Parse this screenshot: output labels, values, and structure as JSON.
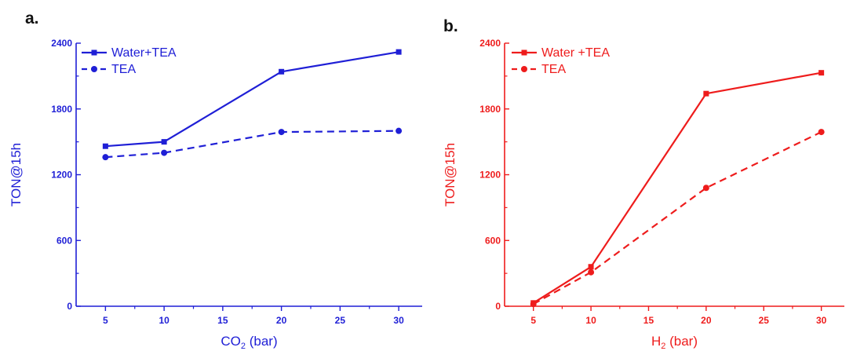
{
  "chart_data": [
    {
      "type": "line",
      "panel_label": "a.",
      "color": "#1f1fd6",
      "xlabel": "CO",
      "xlabel_sub": "2",
      "xlabel_unit": " (bar)",
      "ylabel": "TON@15h",
      "xlim": [
        2.5,
        32
      ],
      "ylim": [
        0,
        2400
      ],
      "xticks": [
        5,
        10,
        15,
        20,
        25,
        30
      ],
      "yticks": [
        0,
        600,
        1200,
        1800,
        2400
      ],
      "grid": false,
      "legend_position": "top-left",
      "series": [
        {
          "name": "Water+TEA",
          "marker": "square",
          "dash": "solid",
          "x": [
            5,
            10,
            20,
            30
          ],
          "y": [
            1460,
            1500,
            2140,
            2320
          ]
        },
        {
          "name": "TEA",
          "marker": "circle",
          "dash": "dashed",
          "x": [
            5,
            10,
            20,
            30
          ],
          "y": [
            1360,
            1400,
            1590,
            1600
          ]
        }
      ]
    },
    {
      "type": "line",
      "panel_label": "b.",
      "color": "#ee1c1c",
      "xlabel": "H",
      "xlabel_sub": "2",
      "xlabel_unit": " (bar)",
      "ylabel": "TON@15h",
      "xlim": [
        2.5,
        32
      ],
      "ylim": [
        0,
        2400
      ],
      "xticks": [
        5,
        10,
        15,
        20,
        25,
        30
      ],
      "yticks": [
        0,
        600,
        1200,
        1800,
        2400
      ],
      "grid": false,
      "legend_position": "top-left",
      "series": [
        {
          "name": "Water +TEA",
          "marker": "square",
          "dash": "solid",
          "x": [
            5,
            10,
            20,
            30
          ],
          "y": [
            30,
            360,
            1940,
            2130
          ]
        },
        {
          "name": "TEA",
          "marker": "circle",
          "dash": "dashed",
          "x": [
            5,
            10,
            20,
            30
          ],
          "y": [
            20,
            310,
            1080,
            1590
          ]
        }
      ]
    }
  ]
}
